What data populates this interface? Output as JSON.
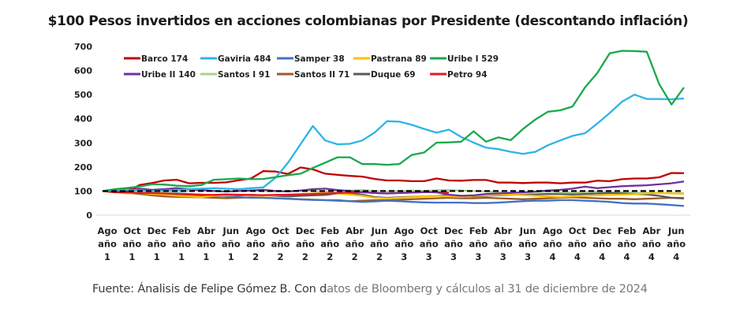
{
  "chart_data": {
    "type": "line",
    "title": "$100 Pesos invertidos en acciones colombianas por Presidente (descontando inflación)",
    "xlabel": "",
    "ylabel": "",
    "ylim": [
      0,
      700
    ],
    "yticks": [
      0,
      100,
      200,
      300,
      400,
      500,
      600,
      700
    ],
    "grid": false,
    "legend": "top-left, inside plot, two rows",
    "x_tick_labels": [
      [
        "Ago",
        "año",
        "1"
      ],
      [
        "Oct",
        "año",
        "1"
      ],
      [
        "Dec",
        "año",
        "1"
      ],
      [
        "Feb",
        "año",
        "1"
      ],
      [
        "Abr",
        "año",
        "1"
      ],
      [
        "Jun",
        "año",
        "1"
      ],
      [
        "Ago",
        "año",
        "2"
      ],
      [
        "Oct",
        "año",
        "2"
      ],
      [
        "Dec",
        "año",
        "2"
      ],
      [
        "Feb",
        "año",
        "2"
      ],
      [
        "Abr",
        "año",
        "2"
      ],
      [
        "Jun",
        "año",
        "2"
      ],
      [
        "Ago",
        "año",
        "3"
      ],
      [
        "Oct",
        "año",
        "3"
      ],
      [
        "Dec",
        "año",
        "3"
      ],
      [
        "Feb",
        "año",
        "3"
      ],
      [
        "Abr",
        "año",
        "3"
      ],
      [
        "Jun",
        "año",
        "3"
      ],
      [
        "Ago",
        "año",
        "4"
      ],
      [
        "Oct",
        "año",
        "4"
      ],
      [
        "Dec",
        "año",
        "4"
      ],
      [
        "Feb",
        "año",
        "4"
      ],
      [
        "Abr",
        "año",
        "4"
      ],
      [
        "Jun",
        "año",
        "4"
      ]
    ],
    "x_note": "monthly points, tick labels every 2 months",
    "reference_line": {
      "value": 100,
      "style": "dashed",
      "color": "#000000"
    },
    "series": [
      {
        "name": "Barco 174",
        "color": "#c00000",
        "values": [
          100,
          95,
          98,
          125,
          133,
          144,
          147,
          132,
          134,
          134,
          136,
          145,
          152,
          183,
          181,
          171,
          198,
          190,
          172,
          167,
          163,
          160,
          150,
          144,
          144,
          141,
          141,
          152,
          144,
          143,
          146,
          146,
          135,
          135,
          133,
          135,
          135,
          132,
          135,
          135,
          143,
          141,
          149,
          152,
          152,
          157,
          175,
          174
        ]
      },
      {
        "name": "Gaviria 484",
        "color": "#2eb4e6",
        "values": [
          100,
          102,
          105,
          103,
          100,
          102,
          105,
          108,
          110,
          112,
          110,
          108,
          112,
          115,
          156,
          218,
          294,
          370,
          310,
          294,
          296,
          310,
          343,
          390,
          388,
          375,
          358,
          342,
          355,
          324,
          301,
          280,
          274,
          263,
          254,
          263,
          290,
          310,
          329,
          340,
          380,
          424,
          471,
          500,
          482,
          482,
          481,
          484
        ]
      },
      {
        "name": "Samper 38",
        "color": "#4472c4",
        "values": [
          100,
          97,
          95,
          92,
          90,
          88,
          90,
          88,
          85,
          80,
          78,
          75,
          72,
          72,
          70,
          68,
          65,
          63,
          62,
          62,
          58,
          55,
          57,
          60,
          58,
          55,
          53,
          52,
          52,
          52,
          50,
          50,
          52,
          55,
          58,
          60,
          60,
          62,
          62,
          60,
          58,
          55,
          50,
          48,
          48,
          45,
          42,
          38
        ]
      },
      {
        "name": "Pastrana 89",
        "color": "#ffc000",
        "values": [
          100,
          95,
          90,
          92,
          88,
          85,
          80,
          78,
          75,
          80,
          82,
          85,
          83,
          80,
          82,
          85,
          88,
          90,
          92,
          90,
          85,
          80,
          72,
          70,
          72,
          75,
          78,
          80,
          78,
          76,
          80,
          82,
          84,
          85,
          83,
          80,
          78,
          75,
          78,
          80,
          82,
          84,
          85,
          87,
          90,
          92,
          90,
          89
        ]
      },
      {
        "name": "Uribe I 529",
        "color": "#1aa84c",
        "values": [
          100,
          108,
          113,
          119,
          128,
          127,
          122,
          120,
          125,
          147,
          149,
          152,
          149,
          150,
          158,
          166,
          172,
          196,
          218,
          240,
          240,
          212,
          212,
          209,
          212,
          250,
          260,
          301,
          302,
          305,
          348,
          305,
          323,
          311,
          358,
          397,
          429,
          435,
          451,
          530,
          590,
          672,
          682,
          681,
          678,
          544,
          459,
          530
        ]
      },
      {
        "name": "Uribe II 140",
        "color": "#7030a0",
        "values": [
          100,
          104,
          108,
          110,
          105,
          108,
          112,
          108,
          104,
          100,
          98,
          100,
          102,
          105,
          100,
          98,
          102,
          108,
          110,
          104,
          100,
          95,
          92,
          90,
          92,
          94,
          96,
          95,
          85,
          80,
          82,
          88,
          90,
          92,
          95,
          98,
          102,
          105,
          110,
          118,
          112,
          116,
          120,
          122,
          124,
          128,
          132,
          140
        ]
      },
      {
        "name": "Santos I 91",
        "color": "#a9d18e",
        "values": [
          100,
          102,
          104,
          100,
          98,
          96,
          98,
          100,
          102,
          100,
          98,
          100,
          102,
          100,
          98,
          100,
          102,
          100,
          98,
          100,
          102,
          104,
          100,
          98,
          100,
          102,
          100,
          103,
          104,
          102,
          100,
          98,
          96,
          95,
          94,
          96,
          98,
          95,
          94,
          96,
          98,
          96,
          95,
          94,
          93,
          92,
          91,
          91
        ]
      },
      {
        "name": "Santos II 71",
        "color": "#9c5a28",
        "values": [
          100,
          96,
          92,
          88,
          82,
          78,
          76,
          75,
          74,
          72,
          70,
          72,
          74,
          72,
          70,
          68,
          66,
          64,
          62,
          60,
          58,
          60,
          62,
          62,
          64,
          66,
          68,
          70,
          72,
          70,
          70,
          72,
          70,
          68,
          66,
          68,
          70,
          72,
          74,
          72,
          70,
          68,
          68,
          66,
          68,
          70,
          72,
          71
        ]
      },
      {
        "name": "Duque 69",
        "color": "#595959",
        "values": [
          100,
          98,
          95,
          90,
          88,
          85,
          84,
          82,
          80,
          78,
          80,
          82,
          84,
          82,
          80,
          78,
          80,
          82,
          84,
          90,
          92,
          85,
          75,
          72,
          74,
          76,
          78,
          80,
          82,
          80,
          78,
          80,
          82,
          84,
          85,
          86,
          88,
          87,
          86,
          88,
          90,
          92,
          90,
          88,
          86,
          80,
          72,
          69
        ]
      },
      {
        "name": "Petro 94",
        "color": "#e31a1c",
        "values": [
          100,
          96,
          94,
          92,
          92,
          90,
          88,
          86,
          85,
          84,
          86,
          85,
          84,
          83,
          84,
          85,
          86,
          88,
          90,
          92,
          94,
          96,
          92,
          90,
          92,
          94,
          96,
          95,
          94
        ]
      }
    ],
    "source_text_dark": "Fuente: Ánalisis de Felipe Gómez B. Con d",
    "source_text_light": "atos de Bloomberg y cálculos al 31 de diciembre de  2024"
  }
}
